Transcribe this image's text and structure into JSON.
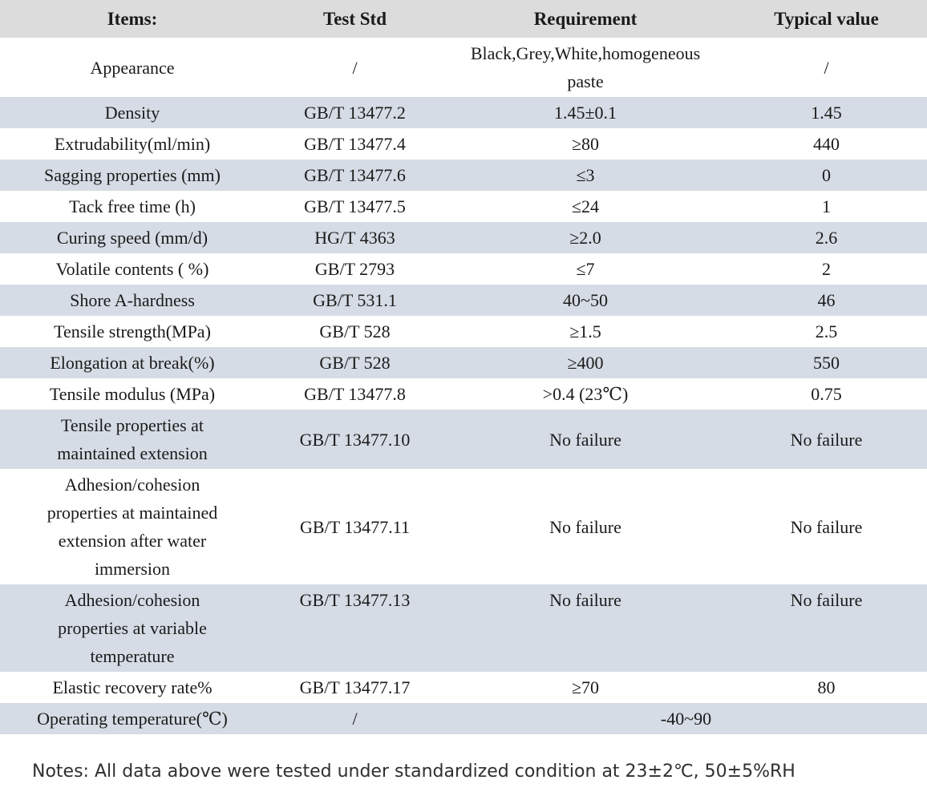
{
  "colors": {
    "header_bg": "#dcdcdc",
    "row_shade": "#d6dce5",
    "text": "#1a1a1a",
    "notes_text": "#2f2f2f",
    "background": "#ffffff"
  },
  "table": {
    "headers": [
      "Items:",
      "Test Std",
      "Requirement",
      "Typical value"
    ],
    "rows": [
      {
        "cells": [
          "Appearance",
          "/",
          "Black,Grey,White,homogeneous paste",
          "/"
        ]
      },
      {
        "cells": [
          "Density",
          "GB/T 13477.2",
          "1.45±0.1",
          "1.45"
        ]
      },
      {
        "cells": [
          "Extrudability(ml/min)",
          "GB/T 13477.4",
          "≥80",
          "440"
        ]
      },
      {
        "cells": [
          "Sagging properties (mm)",
          "GB/T 13477.6",
          "≤3",
          "0"
        ]
      },
      {
        "cells": [
          "Tack free time (h)",
          "GB/T 13477.5",
          "≤24",
          "1"
        ]
      },
      {
        "cells": [
          "Curing speed (mm/d)",
          "HG/T 4363",
          "≥2.0",
          "2.6"
        ]
      },
      {
        "cells": [
          "Volatile contents ( %)",
          "GB/T 2793",
          "≤7",
          "2"
        ]
      },
      {
        "cells": [
          "Shore A-hardness",
          "GB/T 531.1",
          "40~50",
          "46"
        ]
      },
      {
        "cells": [
          "Tensile strength(MPa)",
          "GB/T 528",
          "≥1.5",
          "2.5"
        ]
      },
      {
        "cells": [
          "Elongation at break(%)",
          "GB/T 528",
          "≥400",
          "550"
        ]
      },
      {
        "cells": [
          "Tensile modulus (MPa)",
          "GB/T 13477.8",
          ">0.4 (23℃)",
          "0.75"
        ]
      },
      {
        "cells": [
          "Tensile properties at maintained extension",
          "GB/T 13477.10",
          "No failure",
          "No failure"
        ]
      },
      {
        "cells": [
          "Adhesion/cohesion properties at maintained extension after water immersion",
          "GB/T 13477.11",
          "No failure",
          "No failure"
        ]
      },
      {
        "cells": [
          "Adhesion/cohesion properties at variable temperature",
          "GB/T 13477.13",
          "No failure",
          "No failure"
        ],
        "valign_others": "top"
      },
      {
        "cells": [
          "Elastic recovery rate%",
          "GB/T 13477.17",
          "≥70",
          "80"
        ]
      },
      {
        "cells": [
          "Operating temperature(℃)",
          "/",
          "-40~90"
        ],
        "span_last": true
      }
    ]
  },
  "notes": "Notes: All data above were tested under standardized condition at 23±2℃, 50±5%RH"
}
